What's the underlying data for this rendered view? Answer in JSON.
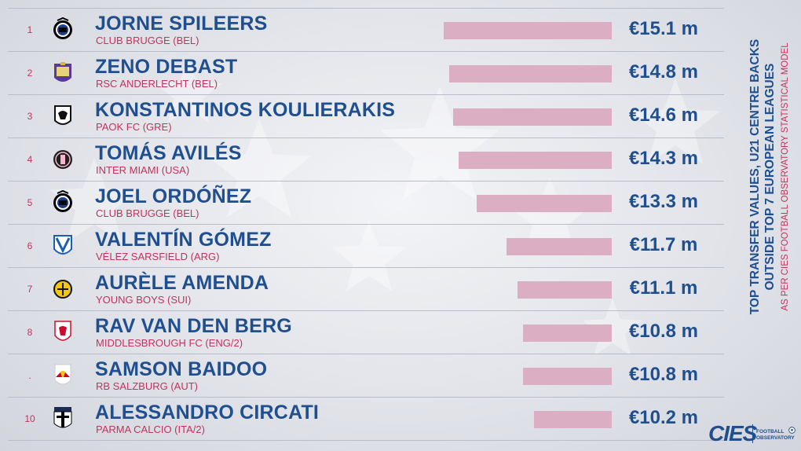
{
  "colors": {
    "accent_blue": "#1f4f8f",
    "accent_pink": "#c4325d",
    "bar": "#dcaec4"
  },
  "side_title": {
    "line1": "TOP TRANSFER VALUES, U21 CENTRE BACKS",
    "line2": "OUTSIDE TOP 7 EUROPEAN LEAGUES",
    "line3": "AS PER CIES FOOTBALL OBSERVATORY STATISTICAL MODEL"
  },
  "brand": {
    "name": "CIES",
    "sub1": "FOOTBALL",
    "sub2": "OBSERVATORY"
  },
  "chart_data": {
    "type": "bar",
    "orientation": "horizontal",
    "unit": "€ m",
    "title": "TOP TRANSFER VALUES, U21 CENTRE BACKS OUTSIDE TOP 7 EUROPEAN LEAGUES",
    "subtitle": "AS PER CIES FOOTBALL OBSERVATORY STATISTICAL MODEL",
    "rows": [
      {
        "rank": "1",
        "name": "JORNE SPILEERS",
        "club": "CLUB BRUGGE (BEL)",
        "value": 15.1,
        "value_label": "€15.1 m",
        "logo_icon": "club-brugge-crest-icon"
      },
      {
        "rank": "2",
        "name": "ZENO DEBAST",
        "club": "RSC ANDERLECHT (BEL)",
        "value": 14.8,
        "value_label": "€14.8 m",
        "logo_icon": "anderlecht-crest-icon"
      },
      {
        "rank": "3",
        "name": "KONSTANTINOS KOULIERAKIS",
        "club": "PAOK FC (GRE)",
        "value": 14.6,
        "value_label": "€14.6 m",
        "logo_icon": "paok-crest-icon"
      },
      {
        "rank": "4",
        "name": "TOMÁS AVILÉS",
        "club": "INTER MIAMI (USA)",
        "value": 14.3,
        "value_label": "€14.3 m",
        "logo_icon": "inter-miami-crest-icon"
      },
      {
        "rank": "5",
        "name": "JOEL ORDÓÑEZ",
        "club": "CLUB BRUGGE (BEL)",
        "value": 13.3,
        "value_label": "€13.3 m",
        "logo_icon": "club-brugge-crest-icon"
      },
      {
        "rank": "6",
        "name": "VALENTÍN GÓMEZ",
        "club": "VÉLEZ SARSFIELD (ARG)",
        "value": 11.7,
        "value_label": "€11.7 m",
        "logo_icon": "velez-crest-icon"
      },
      {
        "rank": "7",
        "name": "AURÈLE AMENDA",
        "club": "YOUNG BOYS (SUI)",
        "value": 11.1,
        "value_label": "€11.1 m",
        "logo_icon": "young-boys-crest-icon"
      },
      {
        "rank": "8",
        "name": "RAV VAN DEN BERG",
        "club": "MIDDLESBROUGH FC (ENG/2)",
        "value": 10.8,
        "value_label": "€10.8 m",
        "logo_icon": "middlesbrough-crest-icon"
      },
      {
        "rank": ".",
        "name": "SAMSON BAIDOO",
        "club": "RB SALZBURG (AUT)",
        "value": 10.8,
        "value_label": "€10.8 m",
        "logo_icon": "rb-salzburg-crest-icon"
      },
      {
        "rank": "10",
        "name": "ALESSANDRO CIRCATI",
        "club": "PARMA CALCIO (ITA/2)",
        "value": 10.2,
        "value_label": "€10.2 m",
        "logo_icon": "parma-crest-icon"
      }
    ]
  }
}
